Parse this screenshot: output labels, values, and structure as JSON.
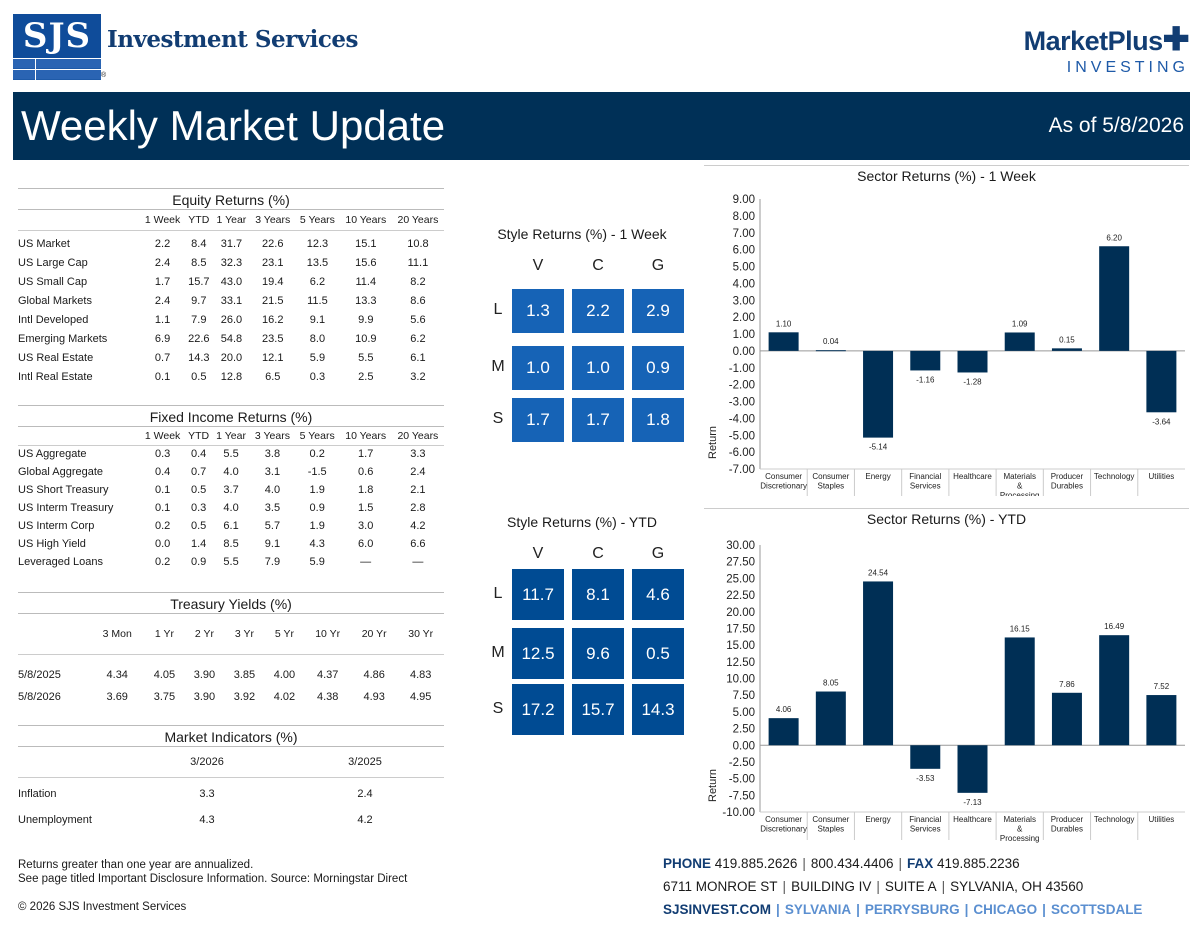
{
  "header": {
    "sjs_mark": "SJS",
    "sjs_name": "Investment Services",
    "sjs_reg": "®",
    "mp_name": "MarketPlus",
    "mp_sub": "INVESTING",
    "banner_title": "Weekly Market Update",
    "as_of": "As of 5/8/2026"
  },
  "equity": {
    "title": "Equity Returns (%)",
    "columns": [
      "1 Week",
      "YTD",
      "1 Year",
      "3 Years",
      "5 Years",
      "10 Years",
      "20 Years"
    ],
    "rows": [
      {
        "label": "US Market",
        "values": [
          "2.2",
          "8.4",
          "31.7",
          "22.6",
          "12.3",
          "15.1",
          "10.8"
        ]
      },
      {
        "label": "US Large Cap",
        "values": [
          "2.4",
          "8.5",
          "32.3",
          "23.1",
          "13.5",
          "15.6",
          "11.1"
        ]
      },
      {
        "label": "US Small Cap",
        "values": [
          "1.7",
          "15.7",
          "43.0",
          "19.4",
          "6.2",
          "11.4",
          "8.2"
        ]
      },
      {
        "label": "Global Markets",
        "values": [
          "2.4",
          "9.7",
          "33.1",
          "21.5",
          "11.5",
          "13.3",
          "8.6"
        ]
      },
      {
        "label": "Intl Developed",
        "values": [
          "1.1",
          "7.9",
          "26.0",
          "16.2",
          "9.1",
          "9.9",
          "5.6"
        ]
      },
      {
        "label": "Emerging Markets",
        "values": [
          "6.9",
          "22.6",
          "54.8",
          "23.5",
          "8.0",
          "10.9",
          "6.2"
        ]
      },
      {
        "label": "US Real Estate",
        "values": [
          "0.7",
          "14.3",
          "20.0",
          "12.1",
          "5.9",
          "5.5",
          "6.1"
        ]
      },
      {
        "label": "Intl Real Estate",
        "values": [
          "0.1",
          "0.5",
          "12.8",
          "6.5",
          "0.3",
          "2.5",
          "3.2"
        ]
      }
    ]
  },
  "fixed": {
    "title": "Fixed Income Returns (%)",
    "columns": [
      "1 Week",
      "YTD",
      "1 Year",
      "3 Years",
      "5 Years",
      "10 Years",
      "20 Years"
    ],
    "rows": [
      {
        "label": "US Aggregate",
        "values": [
          "0.3",
          "0.4",
          "5.5",
          "3.8",
          "0.2",
          "1.7",
          "3.3"
        ]
      },
      {
        "label": "Global Aggregate",
        "values": [
          "0.4",
          "0.7",
          "4.0",
          "3.1",
          "-1.5",
          "0.6",
          "2.4"
        ]
      },
      {
        "label": "US Short Treasury",
        "values": [
          "0.1",
          "0.5",
          "3.7",
          "4.0",
          "1.9",
          "1.8",
          "2.1"
        ]
      },
      {
        "label": "US Interm Treasury",
        "values": [
          "0.1",
          "0.3",
          "4.0",
          "3.5",
          "0.9",
          "1.5",
          "2.8"
        ]
      },
      {
        "label": "US Interm Corp",
        "values": [
          "0.2",
          "0.5",
          "6.1",
          "5.7",
          "1.9",
          "3.0",
          "4.2"
        ]
      },
      {
        "label": "US High Yield",
        "values": [
          "0.0",
          "1.4",
          "8.5",
          "9.1",
          "4.3",
          "6.0",
          "6.6"
        ]
      },
      {
        "label": "Leveraged Loans",
        "values": [
          "0.2",
          "0.9",
          "5.5",
          "7.9",
          "5.9",
          "—",
          "—"
        ]
      }
    ]
  },
  "treasury": {
    "title": "Treasury Yields (%)",
    "columns": [
      "3 Mon",
      "1 Yr",
      "2 Yr",
      "3 Yr",
      "5 Yr",
      "10 Yr",
      "20 Yr",
      "30 Yr"
    ],
    "rows": [
      {
        "label": "5/8/2025",
        "values": [
          "4.34",
          "4.05",
          "3.90",
          "3.85",
          "4.00",
          "4.37",
          "4.86",
          "4.83"
        ]
      },
      {
        "label": "5/8/2026",
        "values": [
          "3.69",
          "3.75",
          "3.90",
          "3.92",
          "4.02",
          "4.38",
          "4.93",
          "4.95"
        ]
      }
    ]
  },
  "indicators": {
    "title": "Market Indicators (%)",
    "columns": [
      "3/2026",
      "3/2025"
    ],
    "rows": [
      {
        "label": "Inflation",
        "values": [
          "3.3",
          "2.4"
        ]
      },
      {
        "label": "Unemployment",
        "values": [
          "4.3",
          "4.2"
        ]
      }
    ]
  },
  "style_week": {
    "title": "Style Returns (%)  - 1 Week",
    "cols": [
      "V",
      "C",
      "G"
    ],
    "rows": [
      "L",
      "M",
      "S"
    ],
    "cells": [
      [
        "1.3",
        "2.2",
        "2.9"
      ],
      [
        "1.0",
        "1.0",
        "0.9"
      ],
      [
        "1.7",
        "1.7",
        "1.8"
      ]
    ]
  },
  "style_ytd": {
    "title": "Style Returns (%)  - YTD",
    "cols": [
      "V",
      "C",
      "G"
    ],
    "rows": [
      "L",
      "M",
      "S"
    ],
    "cells": [
      [
        "11.7",
        "8.1",
        "4.6"
      ],
      [
        "12.5",
        "9.6",
        "0.5"
      ],
      [
        "17.2",
        "15.7",
        "14.3"
      ]
    ]
  },
  "chart_data": [
    {
      "type": "bar",
      "title": "Sector Returns (%)  - 1 Week",
      "xlabel": "",
      "ylabel": "Return",
      "categories": [
        "Consumer Discretionary",
        "Consumer Staples",
        "Energy",
        "Financial Services",
        "Healthcare",
        "Materials & Processing",
        "Producer Durables",
        "Technology",
        "Utilities"
      ],
      "values": [
        1.1,
        0.04,
        -5.14,
        -1.16,
        -1.28,
        1.09,
        0.15,
        6.2,
        -3.64
      ],
      "data_labels": [
        "1.10",
        "0.04",
        "-5.14",
        "-1.16",
        "-1.28",
        "1.09",
        "0.15",
        "6.20",
        "-3.64"
      ],
      "ylim": [
        -7,
        9
      ],
      "yticks": [
        9,
        8,
        7,
        6,
        5,
        4,
        3,
        2,
        1,
        0,
        -1,
        -2,
        -3,
        -4,
        -5,
        -6,
        -7
      ],
      "ytick_labels": [
        "9.00",
        "8.00",
        "7.00",
        "6.00",
        "5.00",
        "4.00",
        "3.00",
        "2.00",
        "1.00",
        "0.00",
        "-1.00",
        "-2.00",
        "-3.00",
        "-4.00",
        "-5.00",
        "-6.00",
        "-7.00"
      ],
      "grid": false,
      "color": "#002f55"
    },
    {
      "type": "bar",
      "title": "Sector Returns (%)  - YTD",
      "xlabel": "",
      "ylabel": "Return",
      "categories": [
        "Consumer Discretionary",
        "Consumer Staples",
        "Energy",
        "Financial Services",
        "Healthcare",
        "Materials & Processing",
        "Producer Durables",
        "Technology",
        "Utilities"
      ],
      "values": [
        4.06,
        8.05,
        24.54,
        -3.53,
        -7.13,
        16.15,
        7.86,
        16.49,
        7.52
      ],
      "data_labels": [
        "4.06",
        "8.05",
        "24.54",
        "-3.53",
        "-7.13",
        "16.15",
        "7.86",
        "16.49",
        "7.52"
      ],
      "ylim": [
        -10,
        30
      ],
      "yticks": [
        30,
        27.5,
        25,
        22.5,
        20,
        17.5,
        15,
        12.5,
        10,
        7.5,
        5,
        2.5,
        0,
        -2.5,
        -5,
        -7.5,
        -10
      ],
      "ytick_labels": [
        "30.00",
        "27.50",
        "25.00",
        "22.50",
        "20.00",
        "17.50",
        "15.00",
        "12.50",
        "10.00",
        "7.50",
        "5.00",
        "2.50",
        "0.00",
        "-2.50",
        "-5.00",
        "-7.50",
        "-10.00"
      ],
      "grid": false,
      "color": "#002f55"
    }
  ],
  "category_lines": [
    [
      "Consumer",
      "Discretionary"
    ],
    [
      "Consumer",
      "Staples"
    ],
    [
      "Energy"
    ],
    [
      "Financial",
      "Services"
    ],
    [
      "Healthcare"
    ],
    [
      "Materials",
      "&",
      "Processing"
    ],
    [
      "Producer",
      "Durables"
    ],
    [
      "Technology"
    ],
    [
      "Utilities"
    ]
  ],
  "footer": {
    "note1": "Returns greater than one year are annualized.",
    "note2": "See page titled Important Disclosure Information. Source: Morningstar Direct",
    "copyright": "© 2026 SJS Investment Services",
    "phone_label": "PHONE",
    "phone1": "419.885.2626",
    "phone2": "800.434.4406",
    "fax_label": "FAX",
    "fax": "419.885.2236",
    "addr1": "6711 MONROE ST",
    "addr2": "BUILDING IV",
    "addr3": "SUITE A",
    "addr4": "SYLVANIA, OH 43560",
    "links": [
      "SJSINVEST.COM",
      "SYLVANIA",
      "PERRYSBURG",
      "CHICAGO",
      "SCOTTSDALE"
    ]
  }
}
